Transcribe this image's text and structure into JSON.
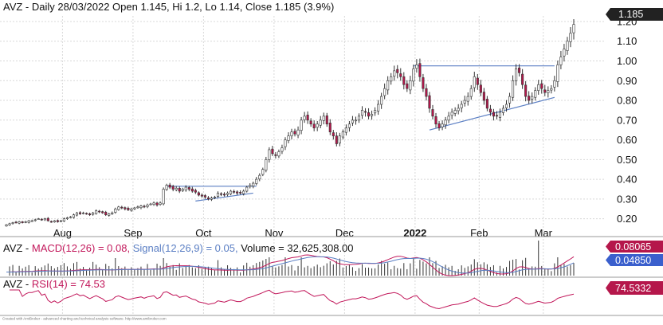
{
  "price_panel": {
    "title": "AVZ - Daily 28/03/2022 Open 1.145, Hi 1.2, Lo 1.14, Close 1.185 (3.9%)",
    "last_price_badge": "1.185"
  },
  "macd_panel": {
    "title_prefix": "AVZ - ",
    "macd_label": "MACD(12,26) = 0.08, ",
    "signal_label": "Signal(12,26,9) = 0.05, ",
    "volume_label": "Volume = 32,625,308.00",
    "macd_badge": "0.08065",
    "signal_badge": "0.04850"
  },
  "rsi_panel": {
    "title_prefix": "AVZ - ",
    "rsi_label": "RSI(14) = 74.53",
    "rsi_badge": "74.5332"
  },
  "footer": {
    "credit": "Created with AmiBroker - advanced charting and technical analysis software. http://www.amibroker.com"
  },
  "colors": {
    "up_candle": "#ffffff",
    "down_candle": "#b5174b",
    "candle_outline": "#333333",
    "trendline": "#5b7fc4",
    "macd_line": "#c2185b",
    "signal_line": "#5b7fc4",
    "rsi_line": "#c2185b",
    "grid": "#d8d8d8",
    "badge_dark": "#222222",
    "badge_red": "#b5174b",
    "badge_blue": "#3a5fcd"
  },
  "chart_data": {
    "type": "candlestick",
    "title": "AVZ - Daily 28/03/2022 Open 1.145, Hi 1.2, Lo 1.14, Close 1.185 (3.9%)",
    "x_labels": [
      "Aug",
      "Sep",
      "Oct",
      "Nov",
      "Dec",
      "2022",
      "Feb",
      "Mar"
    ],
    "y_ticks": [
      "0.20",
      "0.30",
      "0.40",
      "0.50",
      "0.60",
      "0.70",
      "0.80",
      "0.90",
      "1.00",
      "1.10",
      "1.20"
    ],
    "ylim": [
      0.13,
      1.22
    ],
    "grid": true,
    "month_start_index": [
      18,
      40,
      62,
      84,
      106,
      128,
      148,
      168
    ],
    "closes": [
      0.17,
      0.175,
      0.18,
      0.18,
      0.185,
      0.18,
      0.185,
      0.19,
      0.19,
      0.195,
      0.2,
      0.195,
      0.2,
      0.19,
      0.185,
      0.19,
      0.185,
      0.19,
      0.2,
      0.205,
      0.21,
      0.22,
      0.23,
      0.225,
      0.23,
      0.225,
      0.22,
      0.23,
      0.24,
      0.235,
      0.23,
      0.22,
      0.225,
      0.23,
      0.25,
      0.26,
      0.255,
      0.25,
      0.245,
      0.25,
      0.255,
      0.26,
      0.265,
      0.26,
      0.27,
      0.275,
      0.28,
      0.27,
      0.28,
      0.35,
      0.37,
      0.36,
      0.35,
      0.355,
      0.34,
      0.35,
      0.36,
      0.35,
      0.34,
      0.335,
      0.32,
      0.315,
      0.31,
      0.3,
      0.305,
      0.31,
      0.33,
      0.325,
      0.32,
      0.33,
      0.34,
      0.335,
      0.33,
      0.33,
      0.34,
      0.36,
      0.37,
      0.38,
      0.4,
      0.42,
      0.45,
      0.5,
      0.55,
      0.53,
      0.52,
      0.54,
      0.56,
      0.6,
      0.62,
      0.64,
      0.63,
      0.65,
      0.7,
      0.72,
      0.7,
      0.68,
      0.66,
      0.68,
      0.7,
      0.72,
      0.68,
      0.64,
      0.62,
      0.58,
      0.62,
      0.64,
      0.66,
      0.68,
      0.7,
      0.7,
      0.72,
      0.75,
      0.74,
      0.72,
      0.73,
      0.75,
      0.78,
      0.82,
      0.86,
      0.9,
      0.92,
      0.95,
      0.94,
      0.92,
      0.88,
      0.86,
      0.9,
      0.96,
      0.98,
      0.92,
      0.86,
      0.82,
      0.76,
      0.72,
      0.68,
      0.66,
      0.68,
      0.7,
      0.72,
      0.74,
      0.75,
      0.76,
      0.78,
      0.8,
      0.82,
      0.86,
      0.92,
      0.88,
      0.84,
      0.8,
      0.76,
      0.74,
      0.72,
      0.72,
      0.74,
      0.76,
      0.78,
      0.82,
      0.9,
      0.96,
      0.94,
      0.88,
      0.82,
      0.8,
      0.82,
      0.85,
      0.88,
      0.86,
      0.84,
      0.85,
      0.86,
      0.9,
      0.98,
      1.02,
      1.06,
      1.1,
      1.14,
      1.185
    ],
    "series_names": [
      "MACD(12,26)",
      "Signal(12,26,9)",
      "Volume",
      "RSI(14)"
    ],
    "macd_value": 0.08,
    "signal_value": 0.05,
    "volume_value": 32625308,
    "rsi_value": 74.53
  }
}
